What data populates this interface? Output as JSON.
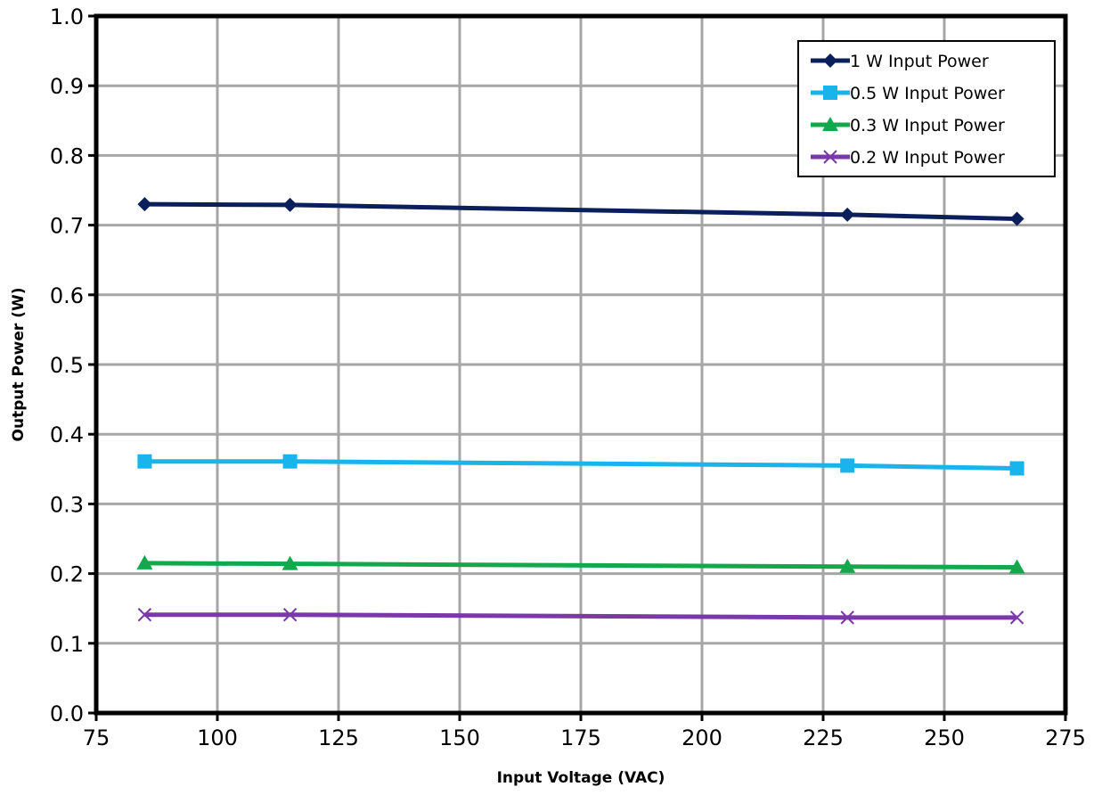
{
  "chart_data": {
    "type": "line",
    "title": "",
    "xlabel": "Input Voltage (VAC)",
    "ylabel": "Output Power (W)",
    "xlim": [
      75,
      275
    ],
    "ylim": [
      0,
      1.0
    ],
    "x_ticks": [
      75,
      100,
      125,
      150,
      175,
      200,
      225,
      250,
      275
    ],
    "y_ticks": [
      0.0,
      0.1,
      0.2,
      0.3,
      0.4,
      0.5,
      0.6,
      0.7,
      0.8,
      0.9,
      1.0
    ],
    "x_tick_labels": [
      "75",
      "100",
      "125",
      "150",
      "175",
      "200",
      "225",
      "250",
      "275"
    ],
    "y_tick_labels": [
      "0.0",
      "0.1",
      "0.2",
      "0.3",
      "0.4",
      "0.5",
      "0.6",
      "0.7",
      "0.8",
      "0.9",
      "1.0"
    ],
    "grid": true,
    "legend_position": "top-right",
    "x": [
      85,
      115,
      230,
      265
    ],
    "series": [
      {
        "name": "1 W Input Power",
        "values": [
          0.73,
          0.729,
          0.715,
          0.709
        ],
        "color": "#0a1f5c",
        "marker": "diamond"
      },
      {
        "name": "0.5 W Input Power",
        "values": [
          0.361,
          0.361,
          0.355,
          0.351
        ],
        "color": "#19b4ec",
        "marker": "square"
      },
      {
        "name": "0.3 W Input Power",
        "values": [
          0.215,
          0.214,
          0.21,
          0.209
        ],
        "color": "#14a84c",
        "marker": "triangle"
      },
      {
        "name": "0.2 W Input Power",
        "values": [
          0.141,
          0.141,
          0.137,
          0.137
        ],
        "color": "#7a38a8",
        "marker": "x"
      }
    ]
  }
}
